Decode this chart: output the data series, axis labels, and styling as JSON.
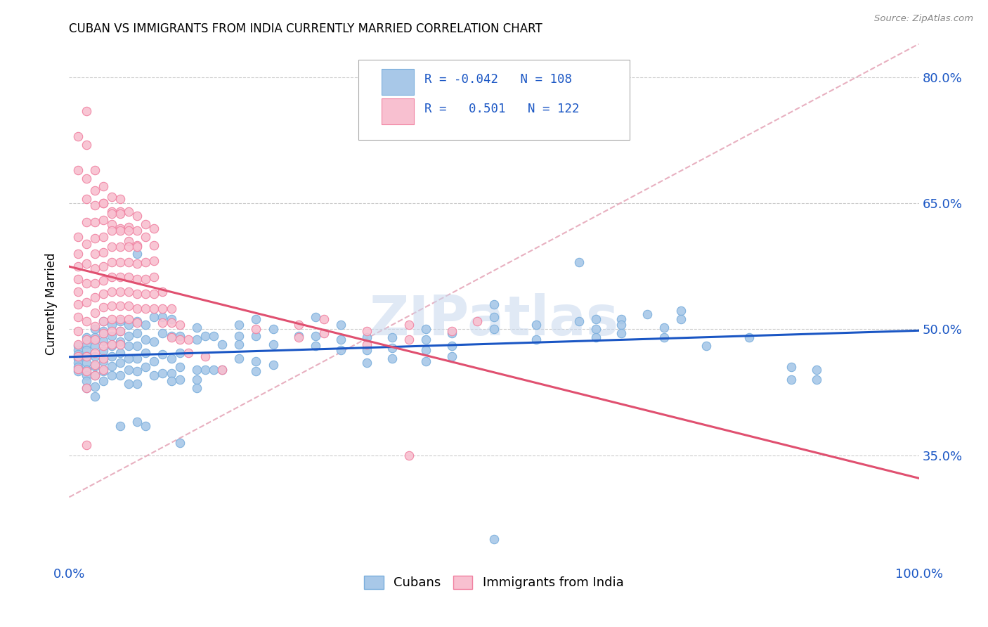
{
  "title": "CUBAN VS IMMIGRANTS FROM INDIA CURRENTLY MARRIED CORRELATION CHART",
  "source": "Source: ZipAtlas.com",
  "ylabel": "Currently Married",
  "ytick_labels": [
    "35.0%",
    "50.0%",
    "65.0%",
    "80.0%"
  ],
  "ytick_values": [
    0.35,
    0.5,
    0.65,
    0.8
  ],
  "xlim": [
    0.0,
    1.0
  ],
  "ylim": [
    0.22,
    0.84
  ],
  "r_cubans": "-0.042",
  "n_cubans": "108",
  "r_india": "0.501",
  "n_india": "122",
  "trend_cubans_color": "#1a56c4",
  "trend_india_color": "#e05070",
  "trend_dashed_color": "#e8b0c0",
  "cubans_color": "#a8c8e8",
  "cubans_edge": "#7aaedc",
  "india_color": "#f8c0d0",
  "india_edge": "#f080a0",
  "watermark": "ZIPatlas",
  "cubans_scatter": [
    [
      0.01,
      0.48
    ],
    [
      0.01,
      0.475
    ],
    [
      0.01,
      0.47
    ],
    [
      0.01,
      0.465
    ],
    [
      0.01,
      0.46
    ],
    [
      0.01,
      0.455
    ],
    [
      0.01,
      0.45
    ],
    [
      0.02,
      0.49
    ],
    [
      0.02,
      0.482
    ],
    [
      0.02,
      0.475
    ],
    [
      0.02,
      0.468
    ],
    [
      0.02,
      0.46
    ],
    [
      0.02,
      0.452
    ],
    [
      0.02,
      0.445
    ],
    [
      0.02,
      0.438
    ],
    [
      0.02,
      0.43
    ],
    [
      0.03,
      0.5
    ],
    [
      0.03,
      0.49
    ],
    [
      0.03,
      0.48
    ],
    [
      0.03,
      0.468
    ],
    [
      0.03,
      0.456
    ],
    [
      0.03,
      0.445
    ],
    [
      0.03,
      0.432
    ],
    [
      0.03,
      0.42
    ],
    [
      0.04,
      0.51
    ],
    [
      0.04,
      0.498
    ],
    [
      0.04,
      0.486
    ],
    [
      0.04,
      0.474
    ],
    [
      0.04,
      0.462
    ],
    [
      0.04,
      0.45
    ],
    [
      0.04,
      0.438
    ],
    [
      0.05,
      0.505
    ],
    [
      0.05,
      0.492
    ],
    [
      0.05,
      0.48
    ],
    [
      0.05,
      0.468
    ],
    [
      0.05,
      0.456
    ],
    [
      0.05,
      0.445
    ],
    [
      0.06,
      0.51
    ],
    [
      0.06,
      0.498
    ],
    [
      0.06,
      0.485
    ],
    [
      0.06,
      0.472
    ],
    [
      0.06,
      0.46
    ],
    [
      0.06,
      0.445
    ],
    [
      0.06,
      0.385
    ],
    [
      0.07,
      0.505
    ],
    [
      0.07,
      0.492
    ],
    [
      0.07,
      0.48
    ],
    [
      0.07,
      0.465
    ],
    [
      0.07,
      0.452
    ],
    [
      0.07,
      0.435
    ],
    [
      0.08,
      0.59
    ],
    [
      0.08,
      0.51
    ],
    [
      0.08,
      0.495
    ],
    [
      0.08,
      0.48
    ],
    [
      0.08,
      0.465
    ],
    [
      0.08,
      0.45
    ],
    [
      0.08,
      0.435
    ],
    [
      0.08,
      0.39
    ],
    [
      0.09,
      0.505
    ],
    [
      0.09,
      0.488
    ],
    [
      0.09,
      0.472
    ],
    [
      0.09,
      0.455
    ],
    [
      0.09,
      0.385
    ],
    [
      0.1,
      0.515
    ],
    [
      0.1,
      0.485
    ],
    [
      0.1,
      0.462
    ],
    [
      0.1,
      0.445
    ],
    [
      0.11,
      0.515
    ],
    [
      0.11,
      0.495
    ],
    [
      0.11,
      0.47
    ],
    [
      0.11,
      0.448
    ],
    [
      0.12,
      0.512
    ],
    [
      0.12,
      0.492
    ],
    [
      0.12,
      0.465
    ],
    [
      0.12,
      0.448
    ],
    [
      0.12,
      0.438
    ],
    [
      0.13,
      0.492
    ],
    [
      0.13,
      0.472
    ],
    [
      0.13,
      0.455
    ],
    [
      0.13,
      0.44
    ],
    [
      0.13,
      0.365
    ],
    [
      0.15,
      0.502
    ],
    [
      0.15,
      0.488
    ],
    [
      0.15,
      0.452
    ],
    [
      0.15,
      0.44
    ],
    [
      0.15,
      0.43
    ],
    [
      0.16,
      0.492
    ],
    [
      0.16,
      0.452
    ],
    [
      0.17,
      0.492
    ],
    [
      0.17,
      0.452
    ],
    [
      0.18,
      0.482
    ],
    [
      0.18,
      0.452
    ],
    [
      0.2,
      0.505
    ],
    [
      0.2,
      0.492
    ],
    [
      0.2,
      0.482
    ],
    [
      0.2,
      0.465
    ],
    [
      0.22,
      0.512
    ],
    [
      0.22,
      0.492
    ],
    [
      0.22,
      0.462
    ],
    [
      0.22,
      0.45
    ],
    [
      0.24,
      0.5
    ],
    [
      0.24,
      0.482
    ],
    [
      0.24,
      0.458
    ],
    [
      0.27,
      0.492
    ],
    [
      0.29,
      0.515
    ],
    [
      0.29,
      0.492
    ],
    [
      0.29,
      0.48
    ],
    [
      0.32,
      0.505
    ],
    [
      0.32,
      0.488
    ],
    [
      0.32,
      0.475
    ],
    [
      0.35,
      0.49
    ],
    [
      0.35,
      0.475
    ],
    [
      0.35,
      0.46
    ],
    [
      0.38,
      0.49
    ],
    [
      0.38,
      0.478
    ],
    [
      0.38,
      0.465
    ],
    [
      0.42,
      0.5
    ],
    [
      0.42,
      0.488
    ],
    [
      0.42,
      0.475
    ],
    [
      0.42,
      0.462
    ],
    [
      0.45,
      0.495
    ],
    [
      0.45,
      0.48
    ],
    [
      0.45,
      0.468
    ],
    [
      0.5,
      0.53
    ],
    [
      0.5,
      0.515
    ],
    [
      0.5,
      0.5
    ],
    [
      0.55,
      0.505
    ],
    [
      0.55,
      0.488
    ],
    [
      0.6,
      0.58
    ],
    [
      0.6,
      0.51
    ],
    [
      0.62,
      0.512
    ],
    [
      0.62,
      0.5
    ],
    [
      0.62,
      0.49
    ],
    [
      0.65,
      0.512
    ],
    [
      0.65,
      0.505
    ],
    [
      0.65,
      0.495
    ],
    [
      0.68,
      0.518
    ],
    [
      0.7,
      0.502
    ],
    [
      0.7,
      0.49
    ],
    [
      0.72,
      0.522
    ],
    [
      0.72,
      0.512
    ],
    [
      0.75,
      0.48
    ],
    [
      0.8,
      0.49
    ],
    [
      0.85,
      0.455
    ],
    [
      0.85,
      0.44
    ],
    [
      0.88,
      0.452
    ],
    [
      0.88,
      0.44
    ],
    [
      0.5,
      0.25
    ]
  ],
  "india_scatter": [
    [
      0.01,
      0.73
    ],
    [
      0.01,
      0.69
    ],
    [
      0.02,
      0.76
    ],
    [
      0.02,
      0.72
    ],
    [
      0.03,
      0.69
    ],
    [
      0.04,
      0.65
    ],
    [
      0.05,
      0.64
    ],
    [
      0.05,
      0.625
    ],
    [
      0.06,
      0.655
    ],
    [
      0.06,
      0.64
    ],
    [
      0.06,
      0.62
    ],
    [
      0.07,
      0.64
    ],
    [
      0.07,
      0.622
    ],
    [
      0.07,
      0.605
    ],
    [
      0.08,
      0.635
    ],
    [
      0.08,
      0.618
    ],
    [
      0.08,
      0.6
    ],
    [
      0.09,
      0.625
    ],
    [
      0.09,
      0.61
    ],
    [
      0.1,
      0.62
    ],
    [
      0.1,
      0.6
    ],
    [
      0.1,
      0.582
    ],
    [
      0.01,
      0.61
    ],
    [
      0.01,
      0.59
    ],
    [
      0.01,
      0.575
    ],
    [
      0.01,
      0.56
    ],
    [
      0.01,
      0.545
    ],
    [
      0.01,
      0.53
    ],
    [
      0.01,
      0.515
    ],
    [
      0.01,
      0.498
    ],
    [
      0.01,
      0.482
    ],
    [
      0.01,
      0.468
    ],
    [
      0.01,
      0.453
    ],
    [
      0.02,
      0.68
    ],
    [
      0.02,
      0.655
    ],
    [
      0.02,
      0.628
    ],
    [
      0.02,
      0.602
    ],
    [
      0.02,
      0.578
    ],
    [
      0.02,
      0.555
    ],
    [
      0.02,
      0.532
    ],
    [
      0.02,
      0.51
    ],
    [
      0.02,
      0.488
    ],
    [
      0.02,
      0.468
    ],
    [
      0.02,
      0.45
    ],
    [
      0.02,
      0.43
    ],
    [
      0.02,
      0.362
    ],
    [
      0.03,
      0.665
    ],
    [
      0.03,
      0.648
    ],
    [
      0.03,
      0.628
    ],
    [
      0.03,
      0.608
    ],
    [
      0.03,
      0.59
    ],
    [
      0.03,
      0.572
    ],
    [
      0.03,
      0.555
    ],
    [
      0.03,
      0.538
    ],
    [
      0.03,
      0.52
    ],
    [
      0.03,
      0.504
    ],
    [
      0.03,
      0.488
    ],
    [
      0.03,
      0.472
    ],
    [
      0.03,
      0.458
    ],
    [
      0.03,
      0.445
    ],
    [
      0.04,
      0.67
    ],
    [
      0.04,
      0.65
    ],
    [
      0.04,
      0.63
    ],
    [
      0.04,
      0.61
    ],
    [
      0.04,
      0.592
    ],
    [
      0.04,
      0.575
    ],
    [
      0.04,
      0.558
    ],
    [
      0.04,
      0.542
    ],
    [
      0.04,
      0.526
    ],
    [
      0.04,
      0.51
    ],
    [
      0.04,
      0.495
    ],
    [
      0.04,
      0.48
    ],
    [
      0.04,
      0.465
    ],
    [
      0.04,
      0.452
    ],
    [
      0.05,
      0.658
    ],
    [
      0.05,
      0.638
    ],
    [
      0.05,
      0.618
    ],
    [
      0.05,
      0.598
    ],
    [
      0.05,
      0.58
    ],
    [
      0.05,
      0.562
    ],
    [
      0.05,
      0.545
    ],
    [
      0.05,
      0.528
    ],
    [
      0.05,
      0.512
    ],
    [
      0.05,
      0.498
    ],
    [
      0.05,
      0.482
    ],
    [
      0.06,
      0.638
    ],
    [
      0.06,
      0.618
    ],
    [
      0.06,
      0.598
    ],
    [
      0.06,
      0.58
    ],
    [
      0.06,
      0.562
    ],
    [
      0.06,
      0.545
    ],
    [
      0.06,
      0.528
    ],
    [
      0.06,
      0.512
    ],
    [
      0.06,
      0.498
    ],
    [
      0.06,
      0.482
    ],
    [
      0.07,
      0.618
    ],
    [
      0.07,
      0.598
    ],
    [
      0.07,
      0.58
    ],
    [
      0.07,
      0.562
    ],
    [
      0.07,
      0.545
    ],
    [
      0.07,
      0.528
    ],
    [
      0.07,
      0.512
    ],
    [
      0.08,
      0.598
    ],
    [
      0.08,
      0.578
    ],
    [
      0.08,
      0.56
    ],
    [
      0.08,
      0.542
    ],
    [
      0.08,
      0.525
    ],
    [
      0.08,
      0.508
    ],
    [
      0.09,
      0.58
    ],
    [
      0.09,
      0.56
    ],
    [
      0.09,
      0.542
    ],
    [
      0.09,
      0.525
    ],
    [
      0.1,
      0.562
    ],
    [
      0.1,
      0.542
    ],
    [
      0.1,
      0.525
    ],
    [
      0.11,
      0.545
    ],
    [
      0.11,
      0.525
    ],
    [
      0.11,
      0.508
    ],
    [
      0.12,
      0.525
    ],
    [
      0.12,
      0.508
    ],
    [
      0.12,
      0.49
    ],
    [
      0.13,
      0.505
    ],
    [
      0.13,
      0.488
    ],
    [
      0.14,
      0.488
    ],
    [
      0.14,
      0.472
    ],
    [
      0.16,
      0.468
    ],
    [
      0.18,
      0.452
    ],
    [
      0.22,
      0.5
    ],
    [
      0.27,
      0.505
    ],
    [
      0.27,
      0.49
    ],
    [
      0.3,
      0.512
    ],
    [
      0.3,
      0.495
    ],
    [
      0.35,
      0.498
    ],
    [
      0.35,
      0.482
    ],
    [
      0.4,
      0.505
    ],
    [
      0.4,
      0.488
    ],
    [
      0.45,
      0.498
    ],
    [
      0.48,
      0.51
    ],
    [
      0.4,
      0.35
    ]
  ]
}
